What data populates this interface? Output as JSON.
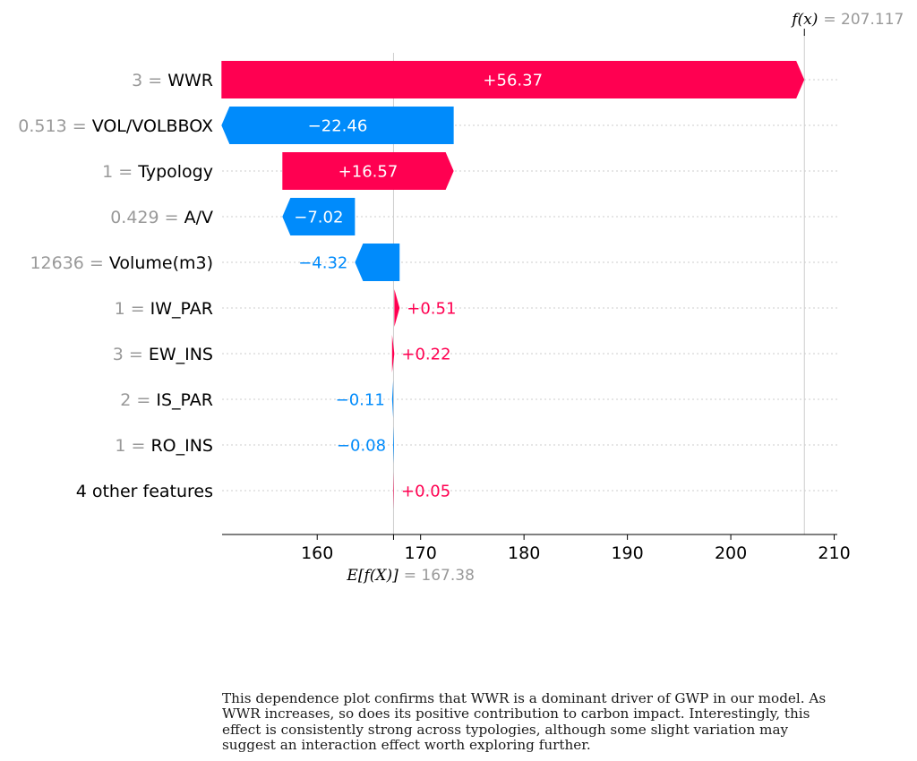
{
  "chart_data": {
    "type": "waterfall",
    "features": [
      {
        "value": "3",
        "name": "WWR",
        "contribution": 56.37,
        "label": "+56.37"
      },
      {
        "value": "0.513",
        "name": "VOL/VOLBBOX",
        "contribution": -22.46,
        "label": "−22.46"
      },
      {
        "value": "1",
        "name": "Typology",
        "contribution": 16.57,
        "label": "+16.57"
      },
      {
        "value": "0.429",
        "name": "A/V",
        "contribution": -7.02,
        "label": "−7.02"
      },
      {
        "value": "12636",
        "name": "Volume(m3)",
        "contribution": -4.32,
        "label": "−4.32"
      },
      {
        "value": "1",
        "name": "IW_PAR",
        "contribution": 0.51,
        "label": "+0.51"
      },
      {
        "value": "3",
        "name": "EW_INS",
        "contribution": 0.22,
        "label": "+0.22"
      },
      {
        "value": "2",
        "name": "IS_PAR",
        "contribution": -0.11,
        "label": "−0.11"
      },
      {
        "value": "1",
        "name": "RO_INS",
        "contribution": -0.08,
        "label": "−0.08"
      },
      {
        "value": "",
        "name": "4 other features",
        "contribution": 0.05,
        "label": "+0.05"
      }
    ],
    "base_value": 167.38,
    "base_label": "E[f(X)]",
    "base_value_text": "= 167.38",
    "output_value": 207.117,
    "output_label": "f(x)",
    "output_value_text": "= 207.117",
    "xlim": [
      150.8,
      210.3
    ],
    "xticks": [
      160,
      170,
      180,
      190,
      200,
      210
    ],
    "colors": {
      "positive": "#ff0051",
      "negative": "#008bfb",
      "muted": "#999999",
      "grid": "#cccccc"
    }
  },
  "caption": "This dependence plot confirms that WWR is a dominant driver of GWP in our model. As WWR increases, so does its positive contribution to carbon impact. Interestingly, this effect is consistently strong across typologies, although some slight variation may suggest an interaction effect worth exploring further."
}
